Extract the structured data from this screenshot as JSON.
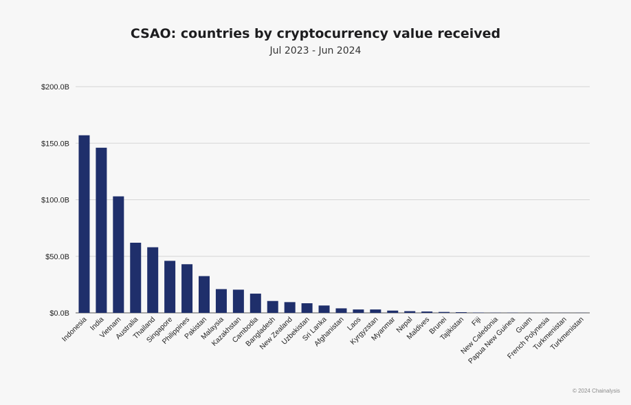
{
  "chart_data": {
    "type": "bar",
    "title": "CSAO: countries by cryptocurrency value received",
    "subtitle": "Jul 2023 - Jun 2024",
    "categories": [
      "Indonesia",
      "India",
      "Vietnam",
      "Australia",
      "Thailand",
      "Singapore",
      "Philippines",
      "Pakistan",
      "Malaysia",
      "Kazakhstan",
      "Cambodia",
      "Bangladesh",
      "New Zealand",
      "Uzbekistan",
      "Sri Lanka",
      "Afghanistan",
      "Laos",
      "Kyrgyzstan",
      "Myanmar",
      "Nepal",
      "Maldives",
      "Brunei",
      "Tajikistan",
      "Fiji",
      "New Caledonia",
      "Papua New Guinea",
      "Guam",
      "French Polynesia",
      "Turkmenistan",
      "Turkmenistan"
    ],
    "values": [
      157,
      146,
      103,
      62,
      58,
      46,
      43,
      32.5,
      21,
      20.5,
      17,
      10.5,
      9.5,
      8.5,
      6.5,
      4,
      3,
      3,
      2,
      1.5,
      1.2,
      0.8,
      0.6,
      0.3,
      0.2,
      0.2,
      0.1,
      0.1,
      0.1,
      0.1
    ],
    "yticks": [
      "$0.0B",
      "$50.0B",
      "$100.0B",
      "$150.0B",
      "$200.0B"
    ],
    "ylim": [
      0,
      200
    ],
    "grid": true,
    "bar_color": "#1f2f6b"
  },
  "footer": "© 2024 Chainalysis"
}
